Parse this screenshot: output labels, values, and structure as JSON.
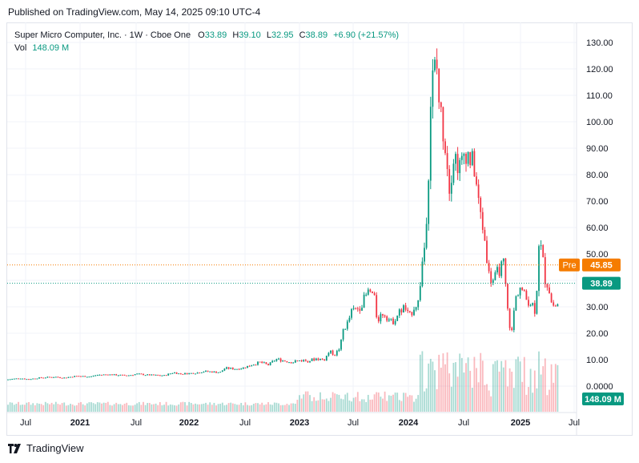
{
  "header": {
    "published": "Published on TradingView.com, May 14, 2025 09:10 UTC-4"
  },
  "legend": {
    "symbol": "Super Micro Computer, Inc. · 1W · Cboe One",
    "o_label": "O",
    "o": "33.89",
    "h_label": "H",
    "h": "39.10",
    "l_label": "L",
    "l": "32.95",
    "c_label": "C",
    "c": "38.89",
    "change": "+6.90 (+21.57%)",
    "vol_label": "Vol",
    "vol": "148.09 M"
  },
  "footer": {
    "brand": "TradingView"
  },
  "colors": {
    "up": "#089981",
    "down": "#f23645",
    "pre": "#f57c00",
    "grid": "#f0f3fa",
    "text": "#131722"
  },
  "chart_data": {
    "type": "candlestick",
    "interval": "1W",
    "ylim": [
      0,
      130
    ],
    "y_ticks": [
      "130.00",
      "120.00",
      "110.00",
      "100.00",
      "90.00",
      "80.00",
      "70.00",
      "60.00",
      "50.00",
      "40.00",
      "30.00",
      "20.00",
      "10.00",
      "0.0000"
    ],
    "x_ticks": [
      "Jul",
      "2021",
      "Jul",
      "2022",
      "Jul",
      "2023",
      "Jul",
      "2024",
      "Jul",
      "2025",
      "Jul"
    ],
    "x_ticks_bold": [
      "2021",
      "2022",
      "2023",
      "2024",
      "2025"
    ],
    "markers": [
      {
        "label": "Pre",
        "value": 45.85,
        "text": "45.85",
        "color": "#f57c00"
      },
      {
        "label": "",
        "value": 38.89,
        "text": "38.89",
        "color": "#089981"
      }
    ],
    "volume_label": "148.09 M",
    "price_path": [
      [
        0,
        2.5
      ],
      [
        16,
        3.0
      ],
      [
        26,
        2.6
      ],
      [
        42,
        3.2
      ],
      [
        60,
        3.5
      ],
      [
        70,
        3.1
      ],
      [
        86,
        3.8
      ],
      [
        104,
        3.6
      ],
      [
        112,
        4.2
      ],
      [
        126,
        4.4
      ],
      [
        130,
        4.3
      ],
      [
        150,
        4.0
      ],
      [
        162,
        4.6
      ],
      [
        176,
        4.2
      ],
      [
        196,
        4.0
      ],
      [
        208,
        5.2
      ],
      [
        216,
        4.6
      ],
      [
        236,
        5.0
      ],
      [
        246,
        5.6
      ],
      [
        266,
        5.2
      ],
      [
        272,
        6.8
      ],
      [
        286,
        6.5
      ],
      [
        296,
        7.0
      ],
      [
        306,
        8.2
      ],
      [
        316,
        9.0
      ],
      [
        326,
        8.0
      ],
      [
        336,
        10.2
      ],
      [
        346,
        9.6
      ],
      [
        356,
        9.0
      ],
      [
        366,
        9.8
      ],
      [
        376,
        9.6
      ],
      [
        386,
        10.4
      ],
      [
        396,
        10.0
      ],
      [
        402,
        13.0
      ],
      [
        410,
        12.0
      ],
      [
        416,
        15.0
      ],
      [
        420,
        22.0
      ],
      [
        424,
        23.0
      ],
      [
        430,
        28.0
      ],
      [
        440,
        30.0
      ],
      [
        452,
        36.0
      ],
      [
        458,
        34.0
      ],
      [
        462,
        25.0
      ],
      [
        470,
        28.0
      ],
      [
        480,
        24.0
      ],
      [
        490,
        28.0
      ],
      [
        496,
        30.0
      ],
      [
        502,
        26.0
      ],
      [
        508,
        30.0
      ],
      [
        514,
        32.0
      ],
      [
        516,
        40.0
      ],
      [
        518,
        46.0
      ],
      [
        522,
        55.0
      ],
      [
        526,
        80.0
      ],
      [
        528,
        105.0
      ],
      [
        532,
        118.0
      ],
      [
        536,
        122.0
      ],
      [
        540,
        105.0
      ],
      [
        544,
        98.0
      ],
      [
        548,
        90.0
      ],
      [
        552,
        76.0
      ],
      [
        558,
        88.0
      ],
      [
        566,
        82.0
      ],
      [
        572,
        90.0
      ],
      [
        578,
        86.0
      ],
      [
        584,
        82.0
      ],
      [
        588,
        70.0
      ],
      [
        594,
        60.0
      ],
      [
        598,
        52.0
      ],
      [
        602,
        41.0
      ],
      [
        608,
        40.0
      ],
      [
        614,
        44.0
      ],
      [
        620,
        46.0
      ],
      [
        626,
        25.0
      ],
      [
        630,
        20.0
      ],
      [
        634,
        32.0
      ],
      [
        640,
        38.0
      ],
      [
        648,
        33.0
      ],
      [
        656,
        31.0
      ],
      [
        660,
        28.0
      ],
      [
        664,
        55.0
      ],
      [
        668,
        50.0
      ],
      [
        672,
        40.0
      ],
      [
        676,
        38.0
      ],
      [
        680,
        31.0
      ],
      [
        686,
        30.0
      ],
      [
        692,
        35.0
      ],
      [
        698,
        38.89
      ]
    ]
  }
}
